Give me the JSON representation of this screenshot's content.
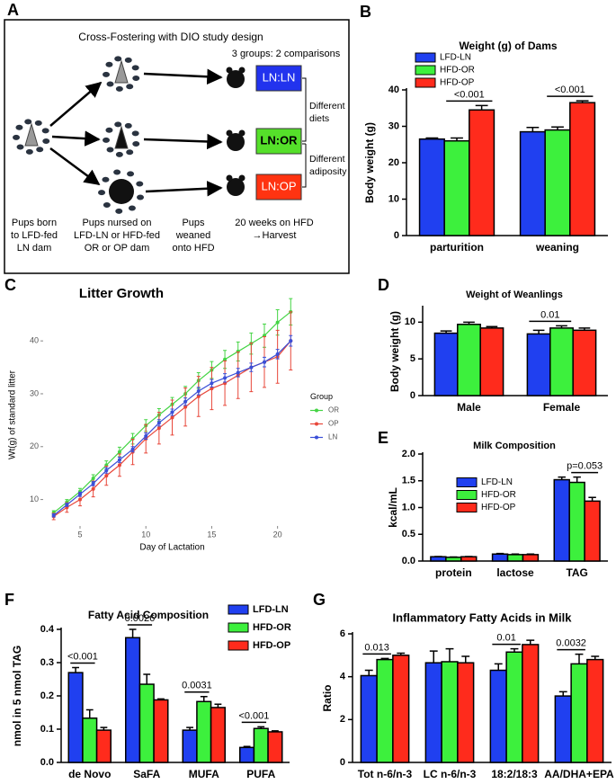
{
  "diagram": {
    "panel": "A",
    "title": "Cross-Fostering with DIO study design",
    "subtitle": "3 groups: 2 comparisons",
    "groups": [
      "LN:LN",
      "LN:OR",
      "LN:OP"
    ],
    "comparisons": [
      [
        "Different",
        "diets"
      ],
      [
        "Different",
        "adiposity"
      ]
    ],
    "stages": [
      [
        "Pups born",
        "to  LFD-fed",
        "LN dam"
      ],
      [
        "Pups nursed on",
        "LFD-LN or HFD-fed",
        "OR or OP dam"
      ],
      [
        "Pups",
        "weaned",
        "onto HFD"
      ],
      [
        "20 weeks on HFD",
        "→Harvest"
      ]
    ]
  },
  "chart_data": [
    {
      "panel": "B",
      "type": "bar",
      "title": "Weight (g) of Dams",
      "y_label": "Body weight (g)",
      "legend": "upper left",
      "categories": [
        "parturition",
        "weaning"
      ],
      "series": [
        {
          "name": "LFD-LN",
          "color": "#2040f0",
          "values": [
            26.5,
            28.5
          ],
          "errors": [
            0.3,
            1.2
          ]
        },
        {
          "name": "HFD-OR",
          "color": "#3df03d",
          "values": [
            26,
            29
          ],
          "errors": [
            0.8,
            0.8
          ]
        },
        {
          "name": "HFD-OP",
          "color": "#ff2b1c",
          "values": [
            34.5,
            36.5
          ],
          "errors": [
            1.2,
            0.5
          ]
        }
      ],
      "ylim": [
        0,
        40
      ],
      "yticks": [
        0,
        10,
        20,
        30,
        40
      ],
      "annotations": [
        "<0.001",
        "<0.001"
      ]
    },
    {
      "panel": "C",
      "type": "line",
      "title": "Litter Growth",
      "x_label": "Day of Lactation",
      "y_label": "Wt(g) of standard litter",
      "legend_title": "Group",
      "x": [
        3,
        4,
        5,
        6,
        7,
        8,
        9,
        10,
        11,
        12,
        13,
        14,
        15,
        16,
        17,
        18,
        19,
        20,
        21
      ],
      "series": [
        {
          "name": "OR",
          "color": "#44d444",
          "values": [
            7.5,
            9.5,
            11.5,
            14,
            16.5,
            19,
            21.5,
            24,
            26,
            28,
            30,
            32.5,
            34.5,
            36.5,
            38,
            39.5,
            41,
            43.5,
            45.5
          ],
          "errors": [
            0.4,
            0.5,
            0.6,
            0.7,
            0.8,
            0.9,
            1,
            1.1,
            1.2,
            1.3,
            1.4,
            1.5,
            1.6,
            1.7,
            1.8,
            2,
            2.2,
            2.4,
            2.5
          ]
        },
        {
          "name": "OP",
          "color": "#e8473a",
          "values": [
            6.8,
            8.5,
            10,
            12,
            14.5,
            16.5,
            19,
            21.5,
            23.5,
            25.5,
            27.5,
            29.5,
            31,
            32,
            33.5,
            35,
            36,
            37,
            40
          ],
          "errors": [
            0.6,
            0.9,
            1.2,
            1.5,
            1.8,
            2.1,
            2.4,
            2.7,
            3,
            3.3,
            3.6,
            3.8,
            4,
            4.2,
            4.4,
            4.6,
            4.8,
            5,
            5.5
          ]
        },
        {
          "name": "LN",
          "color": "#3a4fd8",
          "values": [
            7,
            9,
            11,
            13,
            15.5,
            17.5,
            19.5,
            22,
            24.5,
            26.5,
            28.5,
            30.5,
            32,
            33,
            34,
            35,
            36,
            37.5,
            40
          ],
          "errors": [
            0.3,
            0.3,
            0.4,
            0.4,
            0.5,
            0.5,
            0.5,
            0.6,
            0.6,
            0.6,
            0.7,
            0.7,
            0.7,
            0.8,
            0.8,
            0.8,
            0.9,
            0.9,
            1
          ]
        }
      ],
      "xlim": [
        2.2,
        21.8
      ],
      "xticks": [
        5,
        10,
        15,
        20
      ],
      "ylim": [
        5,
        47
      ],
      "yticks": [
        10,
        20,
        30,
        40
      ]
    },
    {
      "panel": "D",
      "type": "bar",
      "title": "Weight of Weanlings",
      "y_label": "Body weight (g)",
      "categories": [
        "Male",
        "Female"
      ],
      "series": [
        {
          "color": "#2040f0",
          "values": [
            8.5,
            8.4
          ],
          "errors": [
            0.3,
            0.5
          ]
        },
        {
          "color": "#3df03d",
          "values": [
            9.7,
            9.2
          ],
          "errors": [
            0.3,
            0.3
          ]
        },
        {
          "color": "#ff2b1c",
          "values": [
            9.2,
            8.9
          ],
          "errors": [
            0.2,
            0.3
          ]
        }
      ],
      "ylim": [
        0,
        12
      ],
      "yticks": [
        0,
        5,
        10
      ],
      "annotations": [
        "0.01"
      ]
    },
    {
      "panel": "E",
      "type": "bar",
      "title": "Milk Composition",
      "y_label": "kcal/mL",
      "legend": "center left",
      "categories": [
        "protein",
        "lactose",
        "TAG"
      ],
      "series": [
        {
          "name": "LFD-LN",
          "color": "#2040f0",
          "values": [
            0.08,
            0.13,
            1.52
          ],
          "errors": [
            0.005,
            0.01,
            0.05
          ]
        },
        {
          "name": "HFD-OR",
          "color": "#3df03d",
          "values": [
            0.07,
            0.12,
            1.47
          ],
          "errors": [
            0.005,
            0.01,
            0.1
          ]
        },
        {
          "name": "HFD-OP",
          "color": "#ff2b1c",
          "values": [
            0.08,
            0.12,
            1.12
          ],
          "errors": [
            0.005,
            0.01,
            0.07
          ]
        }
      ],
      "ylim": [
        0,
        2
      ],
      "yticks": [
        {
          "value": 0,
          "label": "0.0"
        },
        0.5,
        {
          "value": 1,
          "label": "1.0"
        },
        1.5,
        {
          "value": 2,
          "label": "2.0"
        }
      ],
      "annotations": [
        "p=0.053"
      ]
    },
    {
      "panel": "F",
      "type": "bar",
      "title": "Fatty Acid Composition",
      "y_label": "nmol in 5 nmol TAG",
      "legend": "upper right",
      "categories": [
        "de Novo",
        "SaFA",
        "MUFA",
        "PUFA"
      ],
      "series": [
        {
          "name": "LFD-LN",
          "color": "#2040f0",
          "values": [
            0.27,
            0.375,
            0.097,
            0.045
          ],
          "errors": [
            0.015,
            0.025,
            0.008,
            0.003
          ]
        },
        {
          "name": "HFD-OR",
          "color": "#3df03d",
          "values": [
            0.133,
            0.235,
            0.183,
            0.102
          ],
          "errors": [
            0.025,
            0.03,
            0.015,
            0.005
          ]
        },
        {
          "name": "HFD-OP",
          "color": "#ff2b1c",
          "values": [
            0.097,
            0.188,
            0.165,
            0.092
          ],
          "errors": [
            0.008,
            0.003,
            0.01,
            0.003
          ]
        }
      ],
      "ylim": [
        0,
        0.4
      ],
      "yticks": [
        {
          "value": 0,
          "label": "0.0"
        },
        0.1,
        0.2,
        0.3,
        0.4
      ],
      "annotations": [
        "<0.001",
        "0.0026",
        "0.0031",
        "<0.001"
      ]
    },
    {
      "panel": "G",
      "type": "bar",
      "title": "Inflammatory Fatty Acids in Milk",
      "y_label": "Ratio",
      "categories": [
        "Tot n-6/n-3",
        "LC n-6/n-3",
        "18:2/18:3",
        "AA/DHA+EPA"
      ],
      "series": [
        {
          "color": "#2040f0",
          "values": [
            4.05,
            4.65,
            4.3,
            3.1
          ],
          "errors": [
            0.25,
            0.55,
            0.3,
            0.2
          ]
        },
        {
          "color": "#3df03d",
          "values": [
            4.8,
            4.7,
            5.15,
            4.6
          ],
          "errors": [
            0.05,
            0.6,
            0.15,
            0.45
          ]
        },
        {
          "color": "#ff2b1c",
          "values": [
            5.0,
            4.65,
            5.5,
            4.8
          ],
          "errors": [
            0.1,
            0.3,
            0.2,
            0.15
          ]
        }
      ],
      "ylim": [
        0,
        6
      ],
      "yticks": [
        0,
        2,
        4,
        6
      ],
      "annotations": [
        "0.013",
        "0.01",
        "0.0032"
      ]
    }
  ]
}
